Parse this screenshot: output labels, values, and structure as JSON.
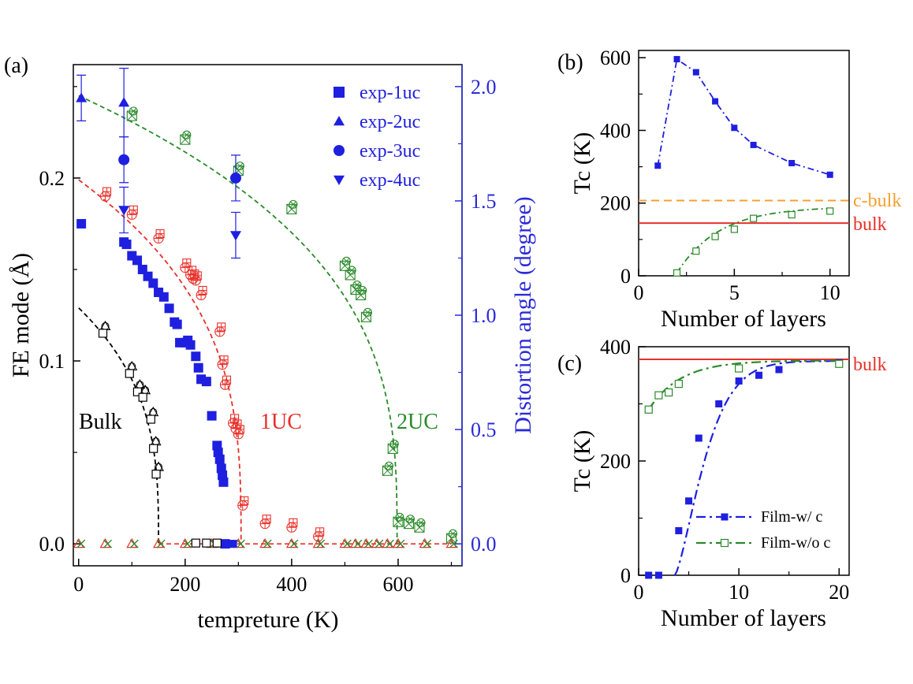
{
  "colors": {
    "black": "#000000",
    "red": "#e8302a",
    "green": "#2a8a2a",
    "blue": "#1f1fe0",
    "orange": "#f5a030",
    "axis_blue": "#2a2ad8"
  },
  "chart_data": [
    {
      "panel": "(a)",
      "type": "scatter",
      "xlabel": "tempreture (K)",
      "ylabel": "FE mode (Å)",
      "y2label": "Distortion angle (degree)",
      "xlim": [
        -10,
        720
      ],
      "ylim": [
        -0.012,
        0.262
      ],
      "y2lim": [
        -0.096,
        2.096
      ],
      "xticks": [
        "0",
        "200",
        "400",
        "600"
      ],
      "yticks": [
        "0.0",
        "0.1",
        "0.2"
      ],
      "y2ticks": [
        "0.0",
        "0.5",
        "1.0",
        "1.5",
        "2.0"
      ],
      "text_labels": [
        "Bulk",
        "1UC",
        "2UC"
      ],
      "series": [
        {
          "name": "Bulk",
          "role": "simulation",
          "color": "black",
          "x": [
            50,
            100,
            115,
            125,
            140,
            145,
            150
          ],
          "y": [
            0.119,
            0.097,
            0.087,
            0.084,
            0.072,
            0.056,
            0.042
          ]
        },
        {
          "name": "1UC",
          "role": "simulation",
          "color": "red",
          "x": [
            50,
            100,
            150,
            200,
            210,
            215,
            220,
            230,
            265,
            270,
            275,
            290,
            295,
            300,
            308,
            350,
            400,
            450
          ],
          "y": [
            0.19,
            0.18,
            0.167,
            0.151,
            0.147,
            0.145,
            0.144,
            0.136,
            0.116,
            0.098,
            0.087,
            0.066,
            0.063,
            0.06,
            0.021,
            0.011,
            0.009,
            0.004
          ]
        },
        {
          "name": "2UC",
          "role": "simulation",
          "color": "green",
          "x": [
            100,
            200,
            300,
            400,
            500,
            510,
            520,
            530,
            540,
            580,
            590,
            600,
            620,
            640,
            700
          ],
          "y": [
            0.234,
            0.221,
            0.204,
            0.183,
            0.152,
            0.147,
            0.139,
            0.136,
            0.124,
            0.04,
            0.052,
            0.012,
            0.011,
            0.009,
            0.003
          ]
        },
        {
          "name": "exp-1uc",
          "role": "experiment-right-axis",
          "color": "blue",
          "x": [
            5,
            85,
            90,
            100,
            110,
            120,
            130,
            140,
            150,
            160,
            170,
            180,
            185,
            190,
            200,
            205,
            210,
            220,
            225,
            230,
            240,
            250,
            260,
            262,
            265,
            268,
            270,
            272,
            275
          ],
          "y": [
            1.4,
            1.32,
            1.31,
            1.26,
            1.24,
            1.2,
            1.17,
            1.14,
            1.1,
            1.08,
            1.03,
            0.97,
            0.96,
            0.88,
            0.88,
            0.89,
            0.87,
            0.82,
            0.77,
            0.72,
            0.71,
            0.56,
            0.43,
            0.4,
            0.37,
            0.33,
            0.3,
            0.27,
            0.0
          ]
        },
        {
          "name": "exp-2uc",
          "role": "experiment-right-axis",
          "color": "blue",
          "x": [
            5,
            85
          ],
          "y": [
            1.95,
            1.93
          ],
          "yerr": [
            0.1,
            0.15
          ]
        },
        {
          "name": "exp-3uc",
          "role": "experiment-right-axis",
          "color": "blue",
          "x": [
            85,
            295
          ],
          "y": [
            1.68,
            1.6
          ],
          "yerr": [
            0.1,
            0.1
          ]
        },
        {
          "name": "exp-4uc",
          "role": "experiment-right-axis",
          "color": "blue",
          "x": [
            85,
            295
          ],
          "y": [
            1.46,
            1.35
          ],
          "yerr": [
            0.1,
            0.1
          ]
        }
      ],
      "baseline_markers_x": [
        0,
        50,
        100,
        150,
        200,
        250,
        300,
        350,
        400,
        450,
        500,
        520,
        540,
        560,
        580,
        600,
        650,
        700
      ],
      "legend": {
        "position": "top-right",
        "entries": [
          "exp-1uc",
          "exp-2uc",
          "exp-3uc",
          "exp-4uc"
        ]
      }
    },
    {
      "panel": "(b)",
      "type": "line",
      "xlabel": "Number of layers",
      "ylabel": "Tc (K)",
      "xlim": [
        0,
        11
      ],
      "ylim": [
        0,
        620
      ],
      "xticks": [
        "0",
        "5",
        "10"
      ],
      "yticks": [
        "0",
        "200",
        "400",
        "600"
      ],
      "series": [
        {
          "name": "",
          "color": "blue",
          "marker": "filled-square",
          "style": "dash-dot",
          "x": [
            1,
            2,
            3,
            4,
            5,
            6,
            8,
            10
          ],
          "y": [
            303,
            596,
            560,
            480,
            407,
            360,
            310,
            278
          ]
        },
        {
          "name": "",
          "color": "green",
          "marker": "open-square",
          "style": "dash-dot",
          "x": [
            2,
            3,
            4,
            5,
            6,
            8,
            10
          ],
          "y": [
            8,
            68,
            108,
            128,
            158,
            168,
            178
          ]
        }
      ],
      "hlines": [
        {
          "label": "c-bulk",
          "y": 207,
          "color": "orange",
          "style": "dashed"
        },
        {
          "label": "bulk",
          "y": 145,
          "color": "red",
          "style": "solid"
        }
      ]
    },
    {
      "panel": "(c)",
      "type": "line",
      "xlabel": "Number of layers",
      "ylabel": "Tc (K)",
      "xlim": [
        0,
        21
      ],
      "ylim": [
        0,
        400
      ],
      "xticks": [
        "0",
        "10",
        "20"
      ],
      "yticks": [
        "0",
        "200",
        "400"
      ],
      "series": [
        {
          "name": "Film-w/ c",
          "color": "blue",
          "marker": "filled-square",
          "style": "dash-dot",
          "x": [
            1,
            2,
            4,
            5,
            6,
            8,
            10,
            12,
            14,
            20
          ],
          "y": [
            0,
            0,
            78,
            130,
            240,
            300,
            340,
            350,
            360,
            372
          ]
        },
        {
          "name": "Film-w/o c",
          "color": "green",
          "marker": "open-square",
          "style": "dash-dot",
          "x": [
            1,
            2,
            3,
            4,
            10,
            20
          ],
          "y": [
            290,
            315,
            320,
            335,
            362,
            370
          ]
        }
      ],
      "hlines": [
        {
          "label": "bulk",
          "y": 378,
          "color": "red",
          "style": "solid"
        }
      ],
      "legend": {
        "position": "bottom-right",
        "entries": [
          "Film-w/ c",
          "Film-w/o c"
        ]
      }
    }
  ]
}
